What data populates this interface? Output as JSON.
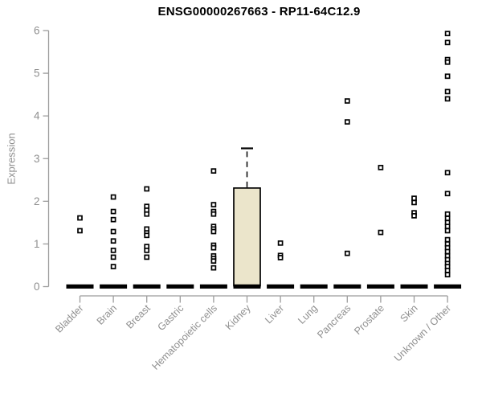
{
  "chart_data": {
    "type": "boxplot",
    "title": "ENSG00000267663 - RP11-64C12.9",
    "xlabel": "",
    "ylabel": "Expression",
    "ylim": [
      0,
      6
    ],
    "yticks": [
      0,
      1,
      2,
      3,
      4,
      5,
      6
    ],
    "grid": false,
    "legend": false,
    "categories": [
      "Bladder",
      "Brain",
      "Breast",
      "Gastric",
      "Hematopoietic cells",
      "Kidney",
      "Liver",
      "Lung",
      "Pancreas",
      "Prostate",
      "Skin",
      "Unknown / Other"
    ],
    "series": [
      {
        "category": "Bladder",
        "median": 0,
        "points": [
          1.61,
          1.31
        ]
      },
      {
        "category": "Brain",
        "median": 0,
        "points": [
          2.1,
          1.76,
          1.57,
          1.29,
          1.07,
          0.85,
          0.69,
          0.47
        ]
      },
      {
        "category": "Breast",
        "median": 0,
        "points": [
          2.29,
          1.88,
          1.79,
          1.7,
          1.35,
          1.26,
          1.2,
          0.94,
          0.85,
          0.69
        ]
      },
      {
        "category": "Gastric",
        "median": 0,
        "points": []
      },
      {
        "category": "Hematopoietic cells",
        "median": 0,
        "points": [
          2.71,
          1.92,
          1.76,
          1.7,
          1.41,
          1.35,
          1.29,
          0.97,
          0.91,
          0.72,
          0.66,
          0.6,
          0.44
        ]
      },
      {
        "category": "Kidney",
        "median": 0,
        "box": {
          "q1": 0,
          "q3": 2.31,
          "whisker_low": 0,
          "whisker_high": 3.24
        },
        "points": []
      },
      {
        "category": "Liver",
        "median": 0,
        "points": [
          1.02,
          0.73,
          0.68
        ]
      },
      {
        "category": "Lung",
        "median": 0,
        "points": []
      },
      {
        "category": "Pancreas",
        "median": 0,
        "points": [
          4.35,
          3.86,
          0.78
        ]
      },
      {
        "category": "Prostate",
        "median": 0,
        "points": [
          2.79,
          1.27
        ]
      },
      {
        "category": "Skin",
        "median": 0,
        "points": [
          2.07,
          1.97,
          1.73,
          1.66
        ]
      },
      {
        "category": "Unknown / Other",
        "median": 0,
        "points": [
          5.93,
          5.72,
          5.32,
          5.26,
          4.93,
          4.57,
          4.4,
          2.67,
          2.18,
          1.7,
          1.6,
          1.5,
          1.41,
          1.31,
          1.1,
          1.0,
          0.91,
          0.82,
          0.72,
          0.63,
          0.54,
          0.47,
          0.38,
          0.28
        ]
      }
    ]
  },
  "colors": {
    "title": "#000000",
    "axis_line": "#9c9c9c",
    "axis_text": "#8f8f8f",
    "marker": "#000000",
    "marker_fill": "#ffffff",
    "median": "#000000",
    "box_fill": "#ebe5cb",
    "box_border": "#000000"
  }
}
